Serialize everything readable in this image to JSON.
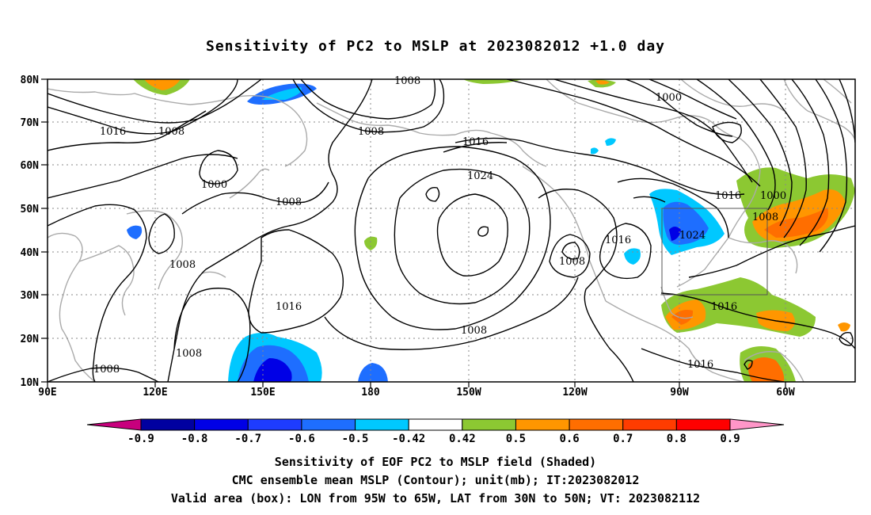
{
  "title": "Sensitivity of PC2 to MSLP at 2023082012 +1.0 day",
  "latitude_labels": [
    "80N",
    "70N",
    "60N",
    "50N",
    "40N",
    "30N",
    "20N",
    "10N"
  ],
  "longitude_labels": [
    "90E",
    "120E",
    "150E",
    "180",
    "150W",
    "120W",
    "90W",
    "60W"
  ],
  "contour_labels": [
    "1008",
    "1000",
    "1016",
    "1008",
    "1008",
    "1016",
    "1000",
    "1024",
    "1008",
    "1016",
    "1000",
    "1008",
    "1024",
    "1016",
    "1008",
    "1008",
    "1016",
    "1016",
    "1008",
    "1008",
    "1016",
    "1008"
  ],
  "colorbar": {
    "labels": [
      "-0.9",
      "-0.8",
      "-0.7",
      "-0.6",
      "-0.5",
      "-0.42",
      "0.42",
      "0.5",
      "0.6",
      "0.7",
      "0.8",
      "0.9"
    ],
    "colors": [
      "#0000a0",
      "#0000e6",
      "#1e3cff",
      "#1e6eff",
      "#00c8ff",
      "#ffffff",
      "#8cc832",
      "#ff9600",
      "#ff6e00",
      "#ff3c00",
      "#ff0000"
    ],
    "low_end_color": "#c8007d",
    "high_end_color": "#ff96c8"
  },
  "captions": [
    "Sensitivity of EOF PC2 to MSLP field (Shaded)",
    "CMC ensemble mean MSLP (Contour); unit(mb); IT:2023082012",
    "Valid area (box): LON from 95W to 65W, LAT from 30N to 50N; VT: 2023082112"
  ]
}
